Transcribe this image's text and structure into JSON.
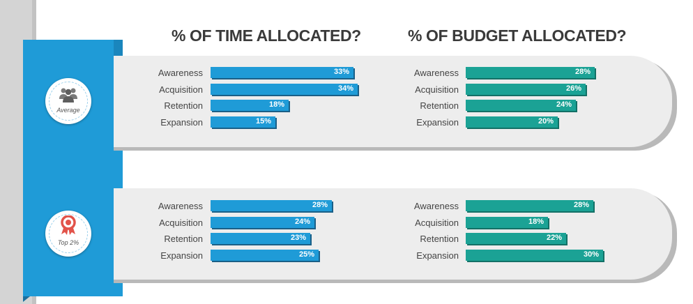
{
  "titles": {
    "time": "% OF TIME ALLOCATED?",
    "budget": "% OF BUDGET ALLOCATED?"
  },
  "badges": {
    "average": {
      "label": "Average",
      "icon": "people-group-icon"
    },
    "top": {
      "label": "Top 2%",
      "icon": "award-ribbon-icon"
    }
  },
  "colors": {
    "time_bar": "#1f9bd7",
    "budget_bar": "#1ba295",
    "side_band": "#1f9bd7",
    "panel": "#ededed"
  },
  "chart_data": [
    {
      "type": "bar",
      "orientation": "horizontal",
      "group": "Average",
      "title": "% OF TIME ALLOCATED?",
      "categories": [
        "Awareness",
        "Acquisition",
        "Retention",
        "Expansion"
      ],
      "values": [
        33,
        34,
        18,
        15
      ],
      "value_labels": [
        "33%",
        "34%",
        "18%",
        "15%"
      ]
    },
    {
      "type": "bar",
      "orientation": "horizontal",
      "group": "Average",
      "title": "% OF BUDGET ALLOCATED?",
      "categories": [
        "Awareness",
        "Acquisition",
        "Retention",
        "Expansion"
      ],
      "values": [
        28,
        26,
        24,
        20
      ],
      "value_labels": [
        "28%",
        "26%",
        "24%",
        "20%"
      ]
    },
    {
      "type": "bar",
      "orientation": "horizontal",
      "group": "Top 2%",
      "title": "% OF TIME ALLOCATED?",
      "categories": [
        "Awareness",
        "Acquisition",
        "Retention",
        "Expansion"
      ],
      "values": [
        28,
        24,
        23,
        25
      ],
      "value_labels": [
        "28%",
        "24%",
        "23%",
        "25%"
      ]
    },
    {
      "type": "bar",
      "orientation": "horizontal",
      "group": "Top 2%",
      "title": "% OF BUDGET ALLOCATED?",
      "categories": [
        "Awareness",
        "Acquisition",
        "Retention",
        "Expansion"
      ],
      "values": [
        28,
        18,
        22,
        30
      ],
      "value_labels": [
        "28%",
        "18%",
        "22%",
        "30%"
      ]
    }
  ]
}
